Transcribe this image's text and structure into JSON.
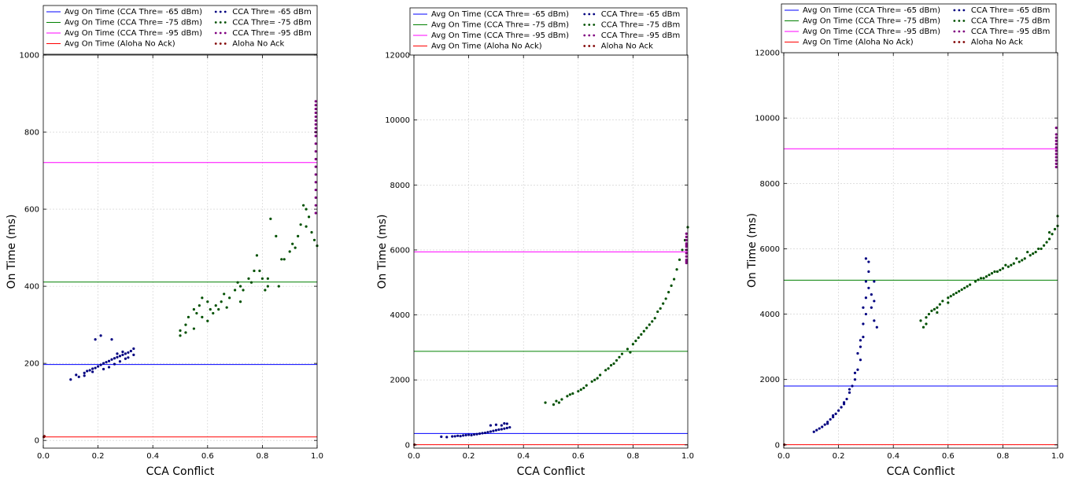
{
  "chart_data": [
    {
      "type": "scatter",
      "xlabel": "CCA Conflict",
      "ylabel": "On Time (ms)",
      "xlim": [
        0,
        1
      ],
      "ylim": [
        -20,
        1000
      ],
      "xticks": [
        0.0,
        0.2,
        0.4,
        0.6,
        0.8,
        1.0
      ],
      "xtick_labels": [
        "0.0",
        "0.2",
        "0.4",
        "0.6",
        "0.8",
        "1.0"
      ],
      "yticks": [
        0,
        200,
        400,
        600,
        800,
        1000
      ],
      "ytick_labels": [
        "0",
        "200",
        "400",
        "600",
        "800",
        "1000"
      ],
      "grid": true,
      "legend_position": "above",
      "series": [
        {
          "name": "Avg On Time (CCA Thre= -65 dBm)",
          "kind": "hline",
          "color": "#0000ff",
          "value": 197
        },
        {
          "name": "Avg On Time (CCA Thre= -75 dBm)",
          "kind": "hline",
          "color": "#008000",
          "value": 411
        },
        {
          "name": "Avg On Time (CCA Thre= -95 dBm)",
          "kind": "hline",
          "color": "#ff00ff",
          "value": 721
        },
        {
          "name": "Avg On Time (Aloha No Ack)",
          "kind": "hline",
          "color": "#ff0000",
          "value": 9
        },
        {
          "name": "CCA Thre= -65 dBm",
          "kind": "points",
          "color": "#000080",
          "x": [
            0.1,
            0.12,
            0.13,
            0.15,
            0.16,
            0.17,
            0.18,
            0.19,
            0.2,
            0.21,
            0.22,
            0.23,
            0.24,
            0.25,
            0.26,
            0.27,
            0.28,
            0.29,
            0.3,
            0.31,
            0.32,
            0.33,
            0.19,
            0.21,
            0.25,
            0.27,
            0.29,
            0.31,
            0.33,
            0.15,
            0.18,
            0.22,
            0.24,
            0.26,
            0.28,
            0.3
          ],
          "y": [
            158,
            170,
            165,
            175,
            180,
            182,
            186,
            188,
            192,
            196,
            200,
            203,
            206,
            210,
            213,
            216,
            219,
            222,
            225,
            228,
            232,
            238,
            262,
            272,
            262,
            225,
            230,
            215,
            222,
            168,
            178,
            185,
            190,
            198,
            205,
            212
          ]
        },
        {
          "name": "CCA Thre= -75 dBm",
          "kind": "points",
          "color": "#005000",
          "x": [
            0.5,
            0.5,
            0.52,
            0.53,
            0.55,
            0.56,
            0.57,
            0.58,
            0.58,
            0.6,
            0.61,
            0.62,
            0.63,
            0.65,
            0.66,
            0.68,
            0.7,
            0.71,
            0.72,
            0.73,
            0.75,
            0.76,
            0.78,
            0.79,
            0.8,
            0.81,
            0.82,
            0.83,
            0.85,
            0.87,
            0.88,
            0.9,
            0.92,
            0.93,
            0.94,
            0.95,
            0.96,
            0.97,
            0.98,
            0.99,
            1.0,
            0.52,
            0.55,
            0.6,
            0.64,
            0.67,
            0.72,
            0.77,
            0.82,
            0.86,
            0.91,
            0.96
          ],
          "y": [
            272,
            285,
            300,
            320,
            340,
            330,
            350,
            320,
            370,
            360,
            340,
            330,
            350,
            360,
            380,
            370,
            390,
            410,
            400,
            390,
            420,
            410,
            480,
            440,
            420,
            390,
            400,
            575,
            530,
            470,
            470,
            490,
            500,
            530,
            560,
            610,
            600,
            580,
            540,
            520,
            505,
            280,
            290,
            310,
            340,
            345,
            360,
            440,
            420,
            400,
            510,
            555
          ]
        },
        {
          "name": "CCA Thre= -95 dBm",
          "kind": "points",
          "color": "#800080",
          "x": [
            0.995,
            0.995,
            0.995,
            0.995,
            0.995,
            0.995,
            0.995,
            0.995,
            0.995,
            0.995,
            0.995,
            0.995,
            0.995,
            0.995,
            0.995,
            0.995,
            0.995,
            0.995,
            0.995,
            0.995
          ],
          "y": [
            590,
            610,
            630,
            650,
            670,
            690,
            710,
            730,
            750,
            770,
            790,
            800,
            810,
            820,
            830,
            840,
            850,
            860,
            870,
            880
          ]
        },
        {
          "name": "Aloha No Ack",
          "kind": "points",
          "color": "#800000",
          "x": [
            0.002,
            0.004
          ],
          "y": [
            9,
            11
          ]
        }
      ]
    },
    {
      "type": "scatter",
      "xlabel": "CCA Conflict",
      "ylabel": "On Time (ms)",
      "xlim": [
        0,
        1
      ],
      "ylim": [
        -100,
        12000
      ],
      "xticks": [
        0.0,
        0.2,
        0.4,
        0.6,
        0.8,
        1.0
      ],
      "xtick_labels": [
        "0.0",
        "0.2",
        "0.4",
        "0.6",
        "0.8",
        "1.0"
      ],
      "yticks": [
        0,
        2000,
        4000,
        6000,
        8000,
        10000,
        12000
      ],
      "ytick_labels": [
        "0",
        "2000",
        "4000",
        "6000",
        "8000",
        "10000",
        "12000"
      ],
      "grid": true,
      "legend_position": "above",
      "series": [
        {
          "name": "Avg On Time (CCA Thre= -65 dBm)",
          "kind": "hline",
          "color": "#0000ff",
          "value": 350
        },
        {
          "name": "Avg On Time (CCA Thre= -75 dBm)",
          "kind": "hline",
          "color": "#008000",
          "value": 2880
        },
        {
          "name": "Avg On Time (CCA Thre= -95 dBm)",
          "kind": "hline",
          "color": "#ff00ff",
          "value": 5940
        },
        {
          "name": "Avg On Time (Aloha No Ack)",
          "kind": "hline",
          "color": "#ff0000",
          "value": 5
        },
        {
          "name": "CCA Thre= -65 dBm",
          "kind": "points",
          "color": "#000080",
          "x": [
            0.1,
            0.12,
            0.14,
            0.15,
            0.16,
            0.17,
            0.18,
            0.19,
            0.2,
            0.21,
            0.22,
            0.23,
            0.24,
            0.25,
            0.26,
            0.27,
            0.28,
            0.29,
            0.3,
            0.31,
            0.32,
            0.33,
            0.34,
            0.35,
            0.28,
            0.3,
            0.32,
            0.33,
            0.34
          ],
          "y": [
            250,
            240,
            260,
            265,
            280,
            270,
            290,
            300,
            310,
            300,
            320,
            330,
            345,
            360,
            370,
            390,
            410,
            430,
            450,
            470,
            480,
            500,
            520,
            540,
            600,
            620,
            600,
            660,
            650
          ]
        },
        {
          "name": "CCA Thre= -75 dBm",
          "kind": "points",
          "color": "#005000",
          "x": [
            0.48,
            0.51,
            0.52,
            0.54,
            0.56,
            0.58,
            0.6,
            0.62,
            0.63,
            0.65,
            0.66,
            0.68,
            0.7,
            0.71,
            0.72,
            0.74,
            0.75,
            0.76,
            0.78,
            0.8,
            0.81,
            0.82,
            0.84,
            0.85,
            0.86,
            0.88,
            0.89,
            0.9,
            0.91,
            0.92,
            0.93,
            0.94,
            0.95,
            0.96,
            0.97,
            0.98,
            0.99,
            1.0,
            0.53,
            0.57,
            0.61,
            0.67,
            0.73,
            0.79,
            0.83,
            0.87
          ],
          "y": [
            1300,
            1240,
            1350,
            1400,
            1500,
            1580,
            1650,
            1750,
            1830,
            1950,
            2000,
            2150,
            2300,
            2350,
            2450,
            2600,
            2700,
            2800,
            2950,
            3100,
            3200,
            3300,
            3500,
            3600,
            3700,
            3900,
            4100,
            4200,
            4350,
            4500,
            4700,
            4900,
            5100,
            5400,
            5700,
            6000,
            6300,
            6700,
            1300,
            1550,
            1700,
            2050,
            2500,
            2850,
            3400,
            3800
          ]
        },
        {
          "name": "CCA Thre= -95 dBm",
          "kind": "points",
          "color": "#800080",
          "x": [
            0.995,
            0.995,
            0.995,
            0.995,
            0.995,
            0.995,
            0.995,
            0.995,
            0.995,
            0.995,
            0.995,
            0.995
          ],
          "y": [
            5600,
            5700,
            5800,
            5900,
            6000,
            6100,
            6200,
            6300,
            6400,
            6500,
            5650,
            6150
          ]
        },
        {
          "name": "Aloha No Ack",
          "kind": "points",
          "color": "#800000",
          "x": [
            0.002
          ],
          "y": [
            5
          ]
        }
      ]
    },
    {
      "type": "scatter",
      "xlabel": "CCA Conflict",
      "ylabel": "On Time (ms)",
      "xlim": [
        0,
        1
      ],
      "ylim": [
        -100,
        12000
      ],
      "xticks": [
        0.0,
        0.2,
        0.4,
        0.6,
        0.8,
        1.0
      ],
      "xtick_labels": [
        "0.0",
        "0.2",
        "0.4",
        "0.6",
        "0.8",
        "1.0"
      ],
      "yticks": [
        0,
        2000,
        4000,
        6000,
        8000,
        10000,
        12000
      ],
      "ytick_labels": [
        "0",
        "2000",
        "4000",
        "6000",
        "8000",
        "10000",
        "12000"
      ],
      "grid": true,
      "legend_position": "above",
      "series": [
        {
          "name": "Avg On Time (CCA Thre= -65 dBm)",
          "kind": "hline",
          "color": "#0000ff",
          "value": 1800
        },
        {
          "name": "Avg On Time (CCA Thre= -75 dBm)",
          "kind": "hline",
          "color": "#008000",
          "value": 5040
        },
        {
          "name": "Avg On Time (CCA Thre= -95 dBm)",
          "kind": "hline",
          "color": "#ff00ff",
          "value": 9060
        },
        {
          "name": "Avg On Time (Aloha No Ack)",
          "kind": "hline",
          "color": "#ff0000",
          "value": 5
        },
        {
          "name": "CCA Thre= -65 dBm",
          "kind": "points",
          "color": "#000080",
          "x": [
            0.11,
            0.12,
            0.13,
            0.14,
            0.15,
            0.16,
            0.17,
            0.18,
            0.19,
            0.2,
            0.21,
            0.22,
            0.23,
            0.24,
            0.25,
            0.26,
            0.27,
            0.28,
            0.28,
            0.29,
            0.29,
            0.3,
            0.3,
            0.3,
            0.31,
            0.31,
            0.32,
            0.32,
            0.33,
            0.33,
            0.34,
            0.27,
            0.29,
            0.31,
            0.3,
            0.28,
            0.26,
            0.24,
            0.22,
            0.18,
            0.16,
            0.33
          ],
          "y": [
            400,
            450,
            500,
            550,
            620,
            700,
            780,
            850,
            950,
            1050,
            1150,
            1250,
            1400,
            1600,
            1800,
            2000,
            2300,
            2600,
            3000,
            3300,
            3700,
            4000,
            4500,
            5000,
            5300,
            4800,
            4200,
            4600,
            5000,
            3800,
            3600,
            2800,
            4200,
            5600,
            5700,
            3200,
            2200,
            1700,
            1300,
            900,
            650,
            4400
          ]
        },
        {
          "name": "CCA Thre= -75 dBm",
          "kind": "points",
          "color": "#005000",
          "x": [
            0.5,
            0.51,
            0.52,
            0.53,
            0.54,
            0.55,
            0.56,
            0.57,
            0.58,
            0.6,
            0.61,
            0.62,
            0.64,
            0.65,
            0.66,
            0.68,
            0.7,
            0.71,
            0.72,
            0.74,
            0.75,
            0.76,
            0.78,
            0.79,
            0.8,
            0.82,
            0.83,
            0.84,
            0.86,
            0.87,
            0.88,
            0.9,
            0.91,
            0.92,
            0.94,
            0.95,
            0.96,
            0.97,
            0.98,
            0.99,
            1.0,
            0.52,
            0.56,
            0.6,
            0.63,
            0.67,
            0.73,
            0.77,
            0.81,
            0.85,
            0.89,
            0.93,
            0.97,
            1.0
          ],
          "y": [
            3800,
            3600,
            3900,
            4000,
            4100,
            4150,
            4200,
            4300,
            4400,
            4500,
            4550,
            4600,
            4700,
            4750,
            4800,
            4900,
            5000,
            5050,
            5100,
            5150,
            5200,
            5250,
            5300,
            5350,
            5400,
            5450,
            5500,
            5550,
            5600,
            5650,
            5700,
            5800,
            5850,
            5900,
            6000,
            6100,
            6200,
            6300,
            6450,
            6600,
            6700,
            3700,
            4050,
            4350,
            4650,
            4850,
            5100,
            5300,
            5500,
            5700,
            5900,
            6000,
            6500,
            7000
          ]
        },
        {
          "name": "CCA Thre= -95 dBm",
          "kind": "points",
          "color": "#800080",
          "x": [
            0.995,
            0.995,
            0.995,
            0.995,
            0.995,
            0.995,
            0.995,
            0.995,
            0.995,
            0.995,
            0.995,
            0.995
          ],
          "y": [
            8500,
            8600,
            8700,
            8800,
            8900,
            9000,
            9100,
            9200,
            9300,
            9400,
            9500,
            9700
          ]
        },
        {
          "name": "Aloha No Ack",
          "kind": "points",
          "color": "#800000",
          "x": [
            0.002
          ],
          "y": [
            5
          ]
        }
      ]
    }
  ]
}
